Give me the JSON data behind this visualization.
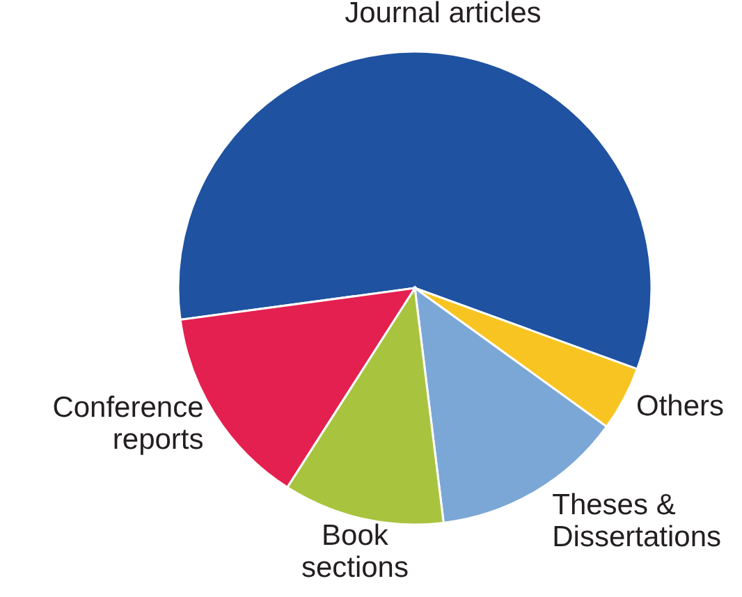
{
  "chart_data": {
    "type": "pie",
    "categories": [
      "Journal articles",
      "Others",
      "Theses & Dissertations",
      "Book sections",
      "Conference reports"
    ],
    "values": [
      57.7,
      4.4,
      13.1,
      11.0,
      13.8
    ],
    "colors": [
      "#1f52a0",
      "#f8c421",
      "#7ba7d6",
      "#a8c43f",
      "#e42050"
    ]
  }
}
